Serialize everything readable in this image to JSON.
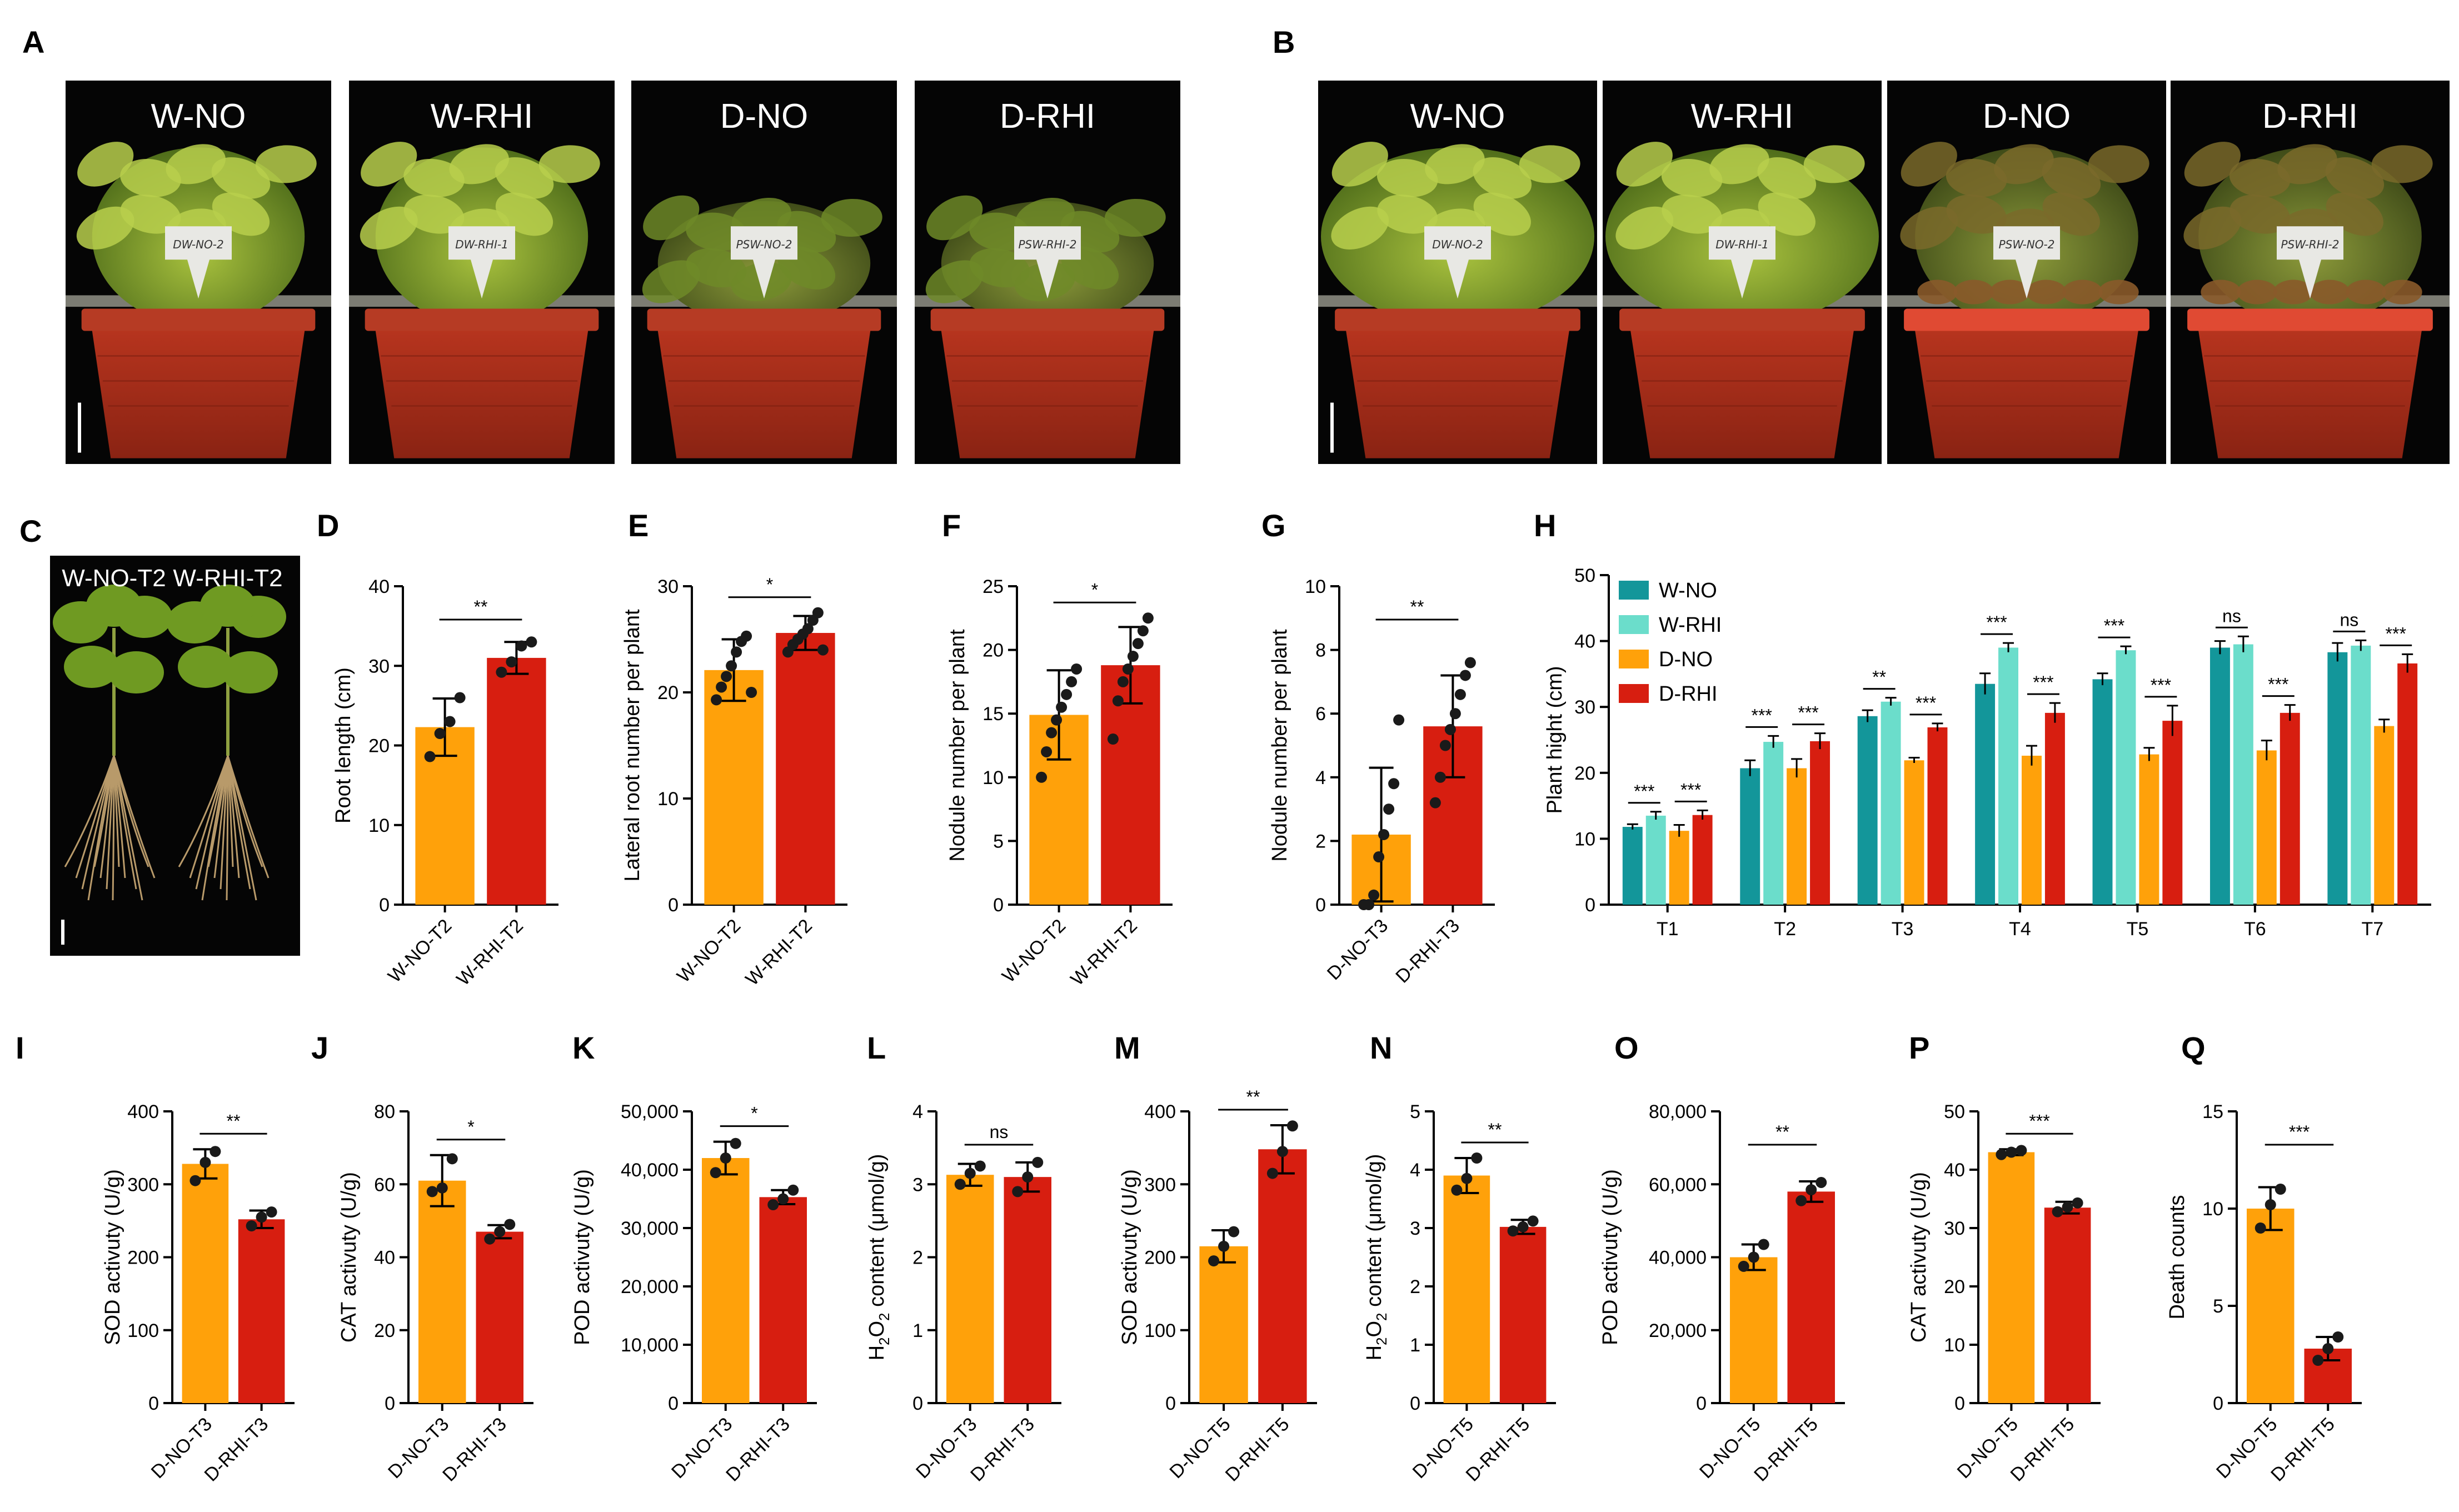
{
  "colors": {
    "orange": "#FFA10A",
    "red": "#D71E10",
    "teal": "#13969A",
    "aqua": "#6BDDCB",
    "dot": "#1a1a1a"
  },
  "photos": {
    "A": {
      "panel": "A",
      "labels": [
        "W-NO",
        "W-RHI",
        "D-NO",
        "D-RHI"
      ],
      "tags": [
        "DW-NO-2",
        "DW-RHI-1",
        "PSW-NO-2",
        "PSW-RHI-2"
      ]
    },
    "B": {
      "panel": "B",
      "labels": [
        "W-NO",
        "W-RHI",
        "D-NO",
        "D-RHI"
      ],
      "tags": [
        "DW-NO-2",
        "DW-RHI-1",
        "PSW-NO-2",
        "PSW-RHI-2"
      ]
    },
    "C": {
      "panel": "C",
      "labels": [
        "W-NO-T2",
        "W-RHI-T2"
      ]
    }
  },
  "chart_data": [
    {
      "id": "D",
      "type": "bar",
      "categories": [
        "W-NO-T2",
        "W-RHI-T2"
      ],
      "ylabel": "Root length (cm)",
      "ylim": [
        0,
        40
      ],
      "yticks": [
        0,
        10,
        20,
        30,
        40
      ],
      "tick_labels": [
        "0",
        "10",
        "20",
        "30",
        "40"
      ],
      "values": [
        22.3,
        31.0
      ],
      "errors": [
        3.6,
        2.0
      ],
      "points": [
        [
          18.6,
          21.5,
          23.0,
          26.0
        ],
        [
          29.2,
          30.5,
          32.5,
          33.0
        ]
      ],
      "sig": "**"
    },
    {
      "id": "E",
      "type": "bar",
      "categories": [
        "W-NO-T2",
        "W-RHI-T2"
      ],
      "ylabel": "Lateral root number per plant",
      "ylim": [
        0,
        30
      ],
      "yticks": [
        0,
        10,
        20,
        30
      ],
      "tick_labels": [
        "0",
        "10",
        "20",
        "30"
      ],
      "values": [
        22.1,
        25.6
      ],
      "errors": [
        2.9,
        1.6
      ],
      "points": [
        [
          19.3,
          20.5,
          21.5,
          22.5,
          23.8,
          24.8,
          25.3,
          20.0
        ],
        [
          23.8,
          24.5,
          25.0,
          25.5,
          26.0,
          26.8,
          27.5,
          24.0
        ]
      ],
      "sig": "*"
    },
    {
      "id": "F",
      "type": "bar",
      "categories": [
        "W-NO-T2",
        "W-RHI-T2"
      ],
      "ylabel": "Nodule number per plant",
      "ylim": [
        0,
        25
      ],
      "yticks": [
        0,
        5,
        10,
        15,
        20,
        25
      ],
      "tick_labels": [
        "0",
        "5",
        "10",
        "15",
        "20",
        "25"
      ],
      "values": [
        14.9,
        18.8
      ],
      "errors": [
        3.5,
        3.0
      ],
      "points": [
        [
          10.0,
          12.0,
          13.5,
          14.5,
          15.5,
          16.5,
          17.5,
          18.5
        ],
        [
          13.0,
          16.0,
          17.5,
          18.5,
          19.5,
          20.5,
          21.5,
          22.5
        ]
      ],
      "sig": "*"
    },
    {
      "id": "G",
      "type": "bar",
      "categories": [
        "D-NO-T3",
        "D-RHI-T3"
      ],
      "ylabel": "Nodule number per plant",
      "ylim": [
        0,
        10
      ],
      "yticks": [
        0,
        2,
        4,
        6,
        8,
        10
      ],
      "tick_labels": [
        "0",
        "2",
        "4",
        "6",
        "8",
        "10"
      ],
      "values": [
        2.2,
        5.6
      ],
      "errors": [
        2.1,
        1.6
      ],
      "points": [
        [
          0.0,
          0.0,
          0.3,
          1.5,
          2.2,
          3.0,
          3.8,
          5.8
        ],
        [
          3.2,
          4.0,
          5.0,
          5.5,
          6.0,
          6.6,
          7.2,
          7.6
        ]
      ],
      "sig": "**"
    },
    {
      "id": "H",
      "type": "bar",
      "categories": [
        "T1",
        "T2",
        "T3",
        "T4",
        "T5",
        "T6",
        "T7"
      ],
      "ylabel": "Plant hight (cm)",
      "ylim": [
        0,
        50
      ],
      "yticks": [
        0,
        10,
        20,
        30,
        40,
        50
      ],
      "tick_labels": [
        "0",
        "10",
        "20",
        "30",
        "40",
        "50"
      ],
      "legend_position": "top-left",
      "series": [
        {
          "name": "W-NO",
          "color": "#13969A",
          "values": [
            11.8,
            20.7,
            28.6,
            33.5,
            34.2,
            39.0,
            38.3
          ],
          "errors": [
            0.4,
            1.2,
            0.9,
            1.6,
            0.9,
            1.0,
            1.4
          ]
        },
        {
          "name": "W-RHI",
          "color": "#6BDDCB",
          "values": [
            13.5,
            24.7,
            30.8,
            39.0,
            38.6,
            39.5,
            39.3
          ],
          "errors": [
            0.6,
            0.9,
            0.6,
            0.7,
            0.6,
            1.2,
            0.8
          ]
        },
        {
          "name": "D-NO",
          "color": "#FFA10A",
          "values": [
            11.2,
            20.7,
            21.9,
            22.6,
            22.8,
            23.4,
            27.1
          ],
          "errors": [
            0.9,
            1.4,
            0.4,
            1.5,
            1.0,
            1.5,
            1.0
          ]
        },
        {
          "name": "D-RHI",
          "color": "#D71E10",
          "values": [
            13.6,
            24.8,
            26.9,
            29.1,
            27.9,
            29.1,
            36.6
          ],
          "errors": [
            0.7,
            1.2,
            0.6,
            1.5,
            2.3,
            1.2,
            1.4
          ]
        }
      ],
      "sig_pairs": [
        [
          "***",
          "***"
        ],
        [
          "***",
          "***"
        ],
        [
          "**",
          "***"
        ],
        [
          "***",
          "***"
        ],
        [
          "***",
          "***"
        ],
        [
          "ns",
          "***"
        ],
        [
          "ns",
          "***"
        ]
      ]
    },
    {
      "id": "I",
      "type": "bar",
      "categories": [
        "D-NO-T3",
        "D-RHI-T3"
      ],
      "ylabel": "SOD activuty (U/g)",
      "ylim": [
        0,
        400
      ],
      "yticks": [
        0,
        100,
        200,
        300,
        400
      ],
      "tick_labels": [
        "0",
        "100",
        "200",
        "300",
        "400"
      ],
      "values": [
        328,
        252
      ],
      "errors": [
        20,
        12
      ],
      "points": [
        [
          305,
          330,
          345
        ],
        [
          243,
          255,
          262
        ]
      ],
      "sig": "**"
    },
    {
      "id": "J",
      "type": "bar",
      "categories": [
        "D-NO-T3",
        "D-RHI-T3"
      ],
      "ylabel": "CAT activuty (U/g)",
      "ylim": [
        0,
        80
      ],
      "yticks": [
        0,
        20,
        40,
        60,
        80
      ],
      "tick_labels": [
        "0",
        "20",
        "40",
        "60",
        "80"
      ],
      "values": [
        61,
        47
      ],
      "errors": [
        7,
        1.8
      ],
      "points": [
        [
          58,
          59,
          67
        ],
        [
          45,
          47,
          49
        ]
      ],
      "sig": "*"
    },
    {
      "id": "K",
      "type": "bar",
      "categories": [
        "D-NO-T3",
        "D-RHI-T3"
      ],
      "ylabel": "POD activuty (U/g)",
      "ylim": [
        0,
        50000
      ],
      "yticks": [
        0,
        10000,
        20000,
        30000,
        40000,
        50000
      ],
      "tick_labels": [
        "0",
        "10,000",
        "20,000",
        "30,000",
        "40,000",
        "50,000"
      ],
      "values": [
        42000,
        35300
      ],
      "errors": [
        2800,
        1200
      ],
      "points": [
        [
          39500,
          42000,
          44500
        ],
        [
          34000,
          35000,
          36500
        ]
      ],
      "sig": "*"
    },
    {
      "id": "L",
      "type": "bar",
      "categories": [
        "D-NO-T3",
        "D-RHI-T3"
      ],
      "ylabel": "H2O2 content (μmol/g)",
      "ylim": [
        0,
        4
      ],
      "yticks": [
        0,
        1,
        2,
        3,
        4
      ],
      "tick_labels": [
        "0",
        "1",
        "2",
        "3",
        "4"
      ],
      "values": [
        3.13,
        3.1
      ],
      "errors": [
        0.15,
        0.2
      ],
      "points": [
        [
          3.0,
          3.15,
          3.25
        ],
        [
          2.9,
          3.1,
          3.3
        ]
      ],
      "sig": "ns"
    },
    {
      "id": "M",
      "type": "bar",
      "categories": [
        "D-NO-T5",
        "D-RHI-T5"
      ],
      "ylabel": "SOD activuty (U/g)",
      "ylim": [
        0,
        400
      ],
      "yticks": [
        0,
        100,
        200,
        300,
        400
      ],
      "tick_labels": [
        "0",
        "100",
        "200",
        "300",
        "400"
      ],
      "values": [
        215,
        348
      ],
      "errors": [
        22,
        33
      ],
      "points": [
        [
          195,
          215,
          235
        ],
        [
          315,
          345,
          380
        ]
      ],
      "sig": "**"
    },
    {
      "id": "N",
      "type": "bar",
      "categories": [
        "D-NO-T5",
        "D-RHI-T5"
      ],
      "ylabel": "H2O2 content (μmol/g)",
      "ylim": [
        0,
        5
      ],
      "yticks": [
        0,
        1,
        2,
        3,
        4,
        5
      ],
      "tick_labels": [
        "0",
        "1",
        "2",
        "3",
        "4",
        "5"
      ],
      "values": [
        3.9,
        3.02
      ],
      "errors": [
        0.3,
        0.12
      ],
      "points": [
        [
          3.65,
          3.85,
          4.2
        ],
        [
          2.95,
          3.02,
          3.12
        ]
      ],
      "sig": "**"
    },
    {
      "id": "O",
      "type": "bar",
      "categories": [
        "D-NO-T5",
        "D-RHI-T5"
      ],
      "ylabel": "POD activuty (U/g)",
      "ylim": [
        0,
        80000
      ],
      "yticks": [
        0,
        20000,
        40000,
        60000,
        80000
      ],
      "tick_labels": [
        "0",
        "20,000",
        "40,000",
        "60,000",
        "80,000"
      ],
      "values": [
        40000,
        58000
      ],
      "errors": [
        3500,
        2800
      ],
      "points": [
        [
          37500,
          40000,
          43500
        ],
        [
          55500,
          58500,
          60500
        ]
      ],
      "sig": "**"
    },
    {
      "id": "P",
      "type": "bar",
      "categories": [
        "D-NO-T5",
        "D-RHI-T5"
      ],
      "ylabel": "CAT activuty (U/g)",
      "ylim": [
        0,
        50
      ],
      "yticks": [
        0,
        10,
        20,
        30,
        40,
        50
      ],
      "tick_labels": [
        "0",
        "10",
        "20",
        "30",
        "40",
        "50"
      ],
      "values": [
        43,
        33.5
      ],
      "errors": [
        0.5,
        1.0
      ],
      "points": [
        [
          42.6,
          43.0,
          43.3
        ],
        [
          32.8,
          33.6,
          34.3
        ]
      ],
      "sig": "***"
    },
    {
      "id": "Q",
      "type": "bar",
      "categories": [
        "D-NO-T5",
        "D-RHI-T5"
      ],
      "ylabel": "Death counts",
      "ylim": [
        0,
        15
      ],
      "yticks": [
        0,
        5,
        10,
        15
      ],
      "tick_labels": [
        "0",
        "5",
        "10",
        "15"
      ],
      "values": [
        10,
        2.8
      ],
      "errors": [
        1.1,
        0.6
      ],
      "points": [
        [
          9.0,
          10.2,
          11.0
        ],
        [
          2.2,
          2.8,
          3.4
        ]
      ],
      "sig": "***"
    }
  ]
}
